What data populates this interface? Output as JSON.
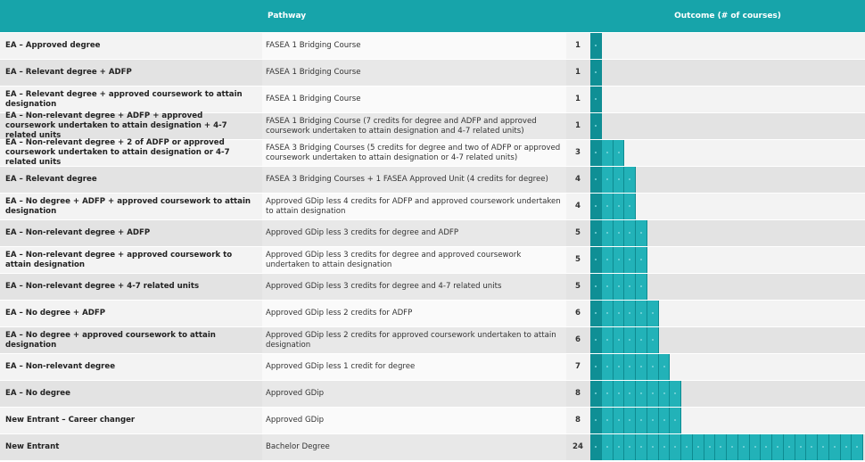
{
  "header": {
    "pathway": "Pathway",
    "outcome": "Outcome (# of courses)"
  },
  "table": {
    "rows": [
      [
        "EA – Approved degree",
        "FASEA 1 Bridging Course",
        1
      ],
      [
        "EA – Relevant degree + ADFP",
        "FASEA 1 Bridging Course",
        1
      ],
      [
        "EA – Relevant degree + approved coursework to attain designation",
        "FASEA 1 Bridging Course",
        1
      ],
      [
        "EA – Non-relevant degree + ADFP + approved coursework undertaken to attain designation + 4-7 related units",
        "FASEA 1 Bridging Course (7 credits for degree and ADFP and approved coursework undertaken to attain designation and 4-7 related units)",
        1
      ],
      [
        "EA – Non-relevant degree + 2 of ADFP or approved coursework undertaken to attain designation or 4-7 related units",
        "FASEA 3 Bridging Courses (5 credits for degree and two of ADFP or approved coursework undertaken to attain designation or 4-7 related units)",
        3
      ],
      [
        "EA – Relevant degree",
        "FASEA 3 Bridging Courses + 1 FASEA Approved Unit (4 credits for degree)",
        4
      ],
      [
        "EA – No degree + ADFP + approved coursework to attain designation",
        "Approved GDip less 4 credits for ADFP and approved coursework undertaken to attain designation",
        4
      ],
      [
        "EA – Non-relevant degree + ADFP",
        "Approved GDip less 3 credits for degree and ADFP",
        5
      ],
      [
        "EA – Non-relevant degree + approved coursework to attain designation",
        "Approved GDip less 3 credits for degree and approved coursework undertaken to attain designation",
        5
      ],
      [
        "EA – Non-relevant degree + 4-7 related units",
        "Approved GDip less 3 credits for degree and 4-7 related units",
        5
      ],
      [
        "EA – No degree + ADFP",
        "Approved GDip less 2 credits for ADFP",
        6
      ],
      [
        "EA – No degree + approved coursework to attain designation",
        "Approved GDip less 2 credits for approved coursework undertaken to attain designation",
        6
      ],
      [
        "EA – Non-relevant degree",
        "Approved GDip less 1 credit for degree",
        7
      ],
      [
        "EA – No degree",
        "Approved GDip",
        8
      ],
      [
        "New Entrant – Career changer",
        "Approved GDip",
        8
      ],
      [
        "New Entrant",
        "Bachelor Degree",
        24
      ]
    ]
  }
}
